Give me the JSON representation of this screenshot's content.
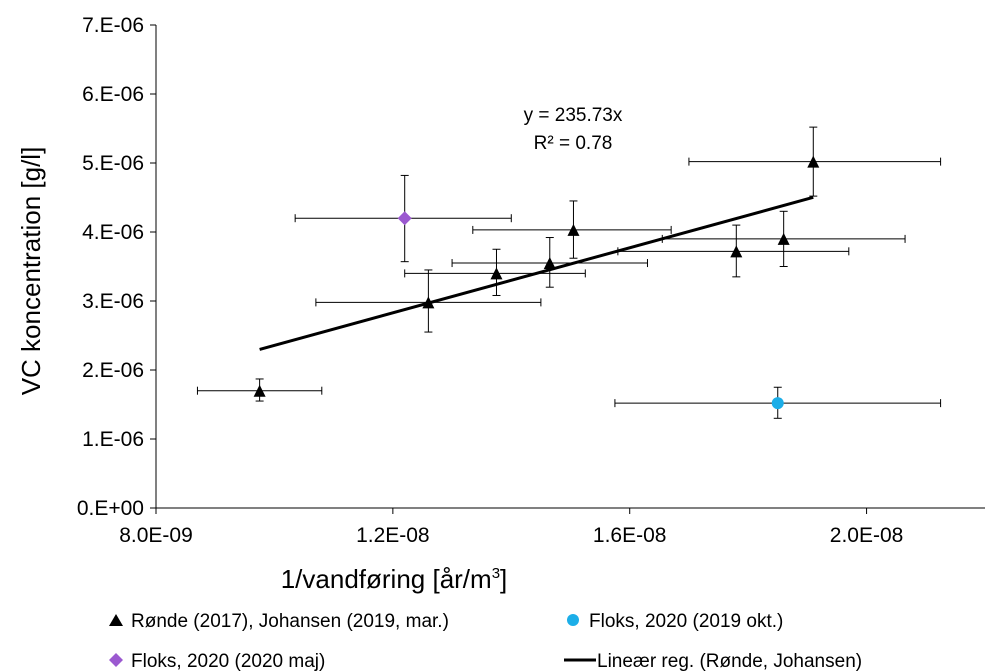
{
  "chart_data": {
    "type": "scatter",
    "xlabel": "1/vandføring [år/m",
    "xlabel_sup": "3",
    "xlabel_end": "]",
    "ylabel": "VC koncentration [g/l]",
    "xlim": [
      8e-09,
      2.2e-08
    ],
    "ylim": [
      0,
      7e-06
    ],
    "x_ticks": [
      8e-09,
      1.2e-08,
      1.6e-08,
      2e-08
    ],
    "x_tick_labels": [
      "8.0E-09",
      "1.2E-08",
      "1.6E-08",
      "2.0E-08"
    ],
    "y_ticks": [
      0,
      1e-06,
      2e-06,
      3e-06,
      4e-06,
      5e-06,
      6e-06,
      7e-06
    ],
    "y_tick_labels": [
      "0.E+00",
      "1.E-06",
      "2.E-06",
      "3.E-06",
      "4.E-06",
      "5.E-06",
      "6.E-06",
      "7.E-06"
    ],
    "grid": false,
    "legend_placement": "bottom",
    "series": [
      {
        "name": "Rønde (2017), Johansen (2019, mar.)",
        "marker": "triangle",
        "color": "#000000",
        "points": [
          {
            "x": 9.75e-09,
            "y": 1.7e-06,
            "xerr": [
              8.7e-09,
              1.08e-08
            ],
            "yerr": [
              1.55e-06,
              1.87e-06
            ]
          },
          {
            "x": 1.26e-08,
            "y": 2.98e-06,
            "xerr": [
              1.07e-08,
              1.45e-08
            ],
            "yerr": [
              2.55e-06,
              3.45e-06
            ]
          },
          {
            "x": 1.375e-08,
            "y": 3.4e-06,
            "xerr": [
              1.22e-08,
              1.525e-08
            ],
            "yerr": [
              3.08e-06,
              3.75e-06
            ]
          },
          {
            "x": 1.465e-08,
            "y": 3.55e-06,
            "xerr": [
              1.3e-08,
              1.63e-08
            ],
            "yerr": [
              3.2e-06,
              3.92e-06
            ]
          },
          {
            "x": 1.505e-08,
            "y": 4.03e-06,
            "xerr": [
              1.335e-08,
              1.67e-08
            ],
            "yerr": [
              3.62e-06,
              4.45e-06
            ]
          },
          {
            "x": 1.78e-08,
            "y": 3.72e-06,
            "xerr": [
              1.58e-08,
              1.97e-08
            ],
            "yerr": [
              3.35e-06,
              4.1e-06
            ]
          },
          {
            "x": 1.86e-08,
            "y": 3.9e-06,
            "xerr": [
              1.655e-08,
              2.065e-08
            ],
            "yerr": [
              3.5e-06,
              4.3e-06
            ]
          },
          {
            "x": 1.91e-08,
            "y": 5.02e-06,
            "xerr": [
              1.7e-08,
              2.125e-08
            ],
            "yerr": [
              4.52e-06,
              5.52e-06
            ]
          }
        ]
      },
      {
        "name": "Floks, 2020 (2019 okt.)",
        "marker": "circle",
        "color": "#1CAEE8",
        "points": [
          {
            "x": 1.85e-08,
            "y": 1.52e-06,
            "xerr": [
              1.575e-08,
              2.125e-08
            ],
            "yerr": [
              1.3e-06,
              1.75e-06
            ]
          }
        ]
      },
      {
        "name": "Floks, 2020 (2020 maj)",
        "marker": "diamond",
        "color": "#9B59D0",
        "points": [
          {
            "x": 1.22e-08,
            "y": 4.2e-06,
            "xerr": [
              1.035e-08,
              1.4e-08
            ],
            "yerr": [
              3.57e-06,
              4.82e-06
            ]
          }
        ]
      }
    ],
    "trendline": {
      "name": "Lineær reg. (Rønde, Johansen)",
      "slope": 235.73,
      "x": [
        9.75e-09,
        1.91e-08
      ],
      "equation": "y = 235.73x",
      "r2": "R² = 0.78"
    }
  }
}
